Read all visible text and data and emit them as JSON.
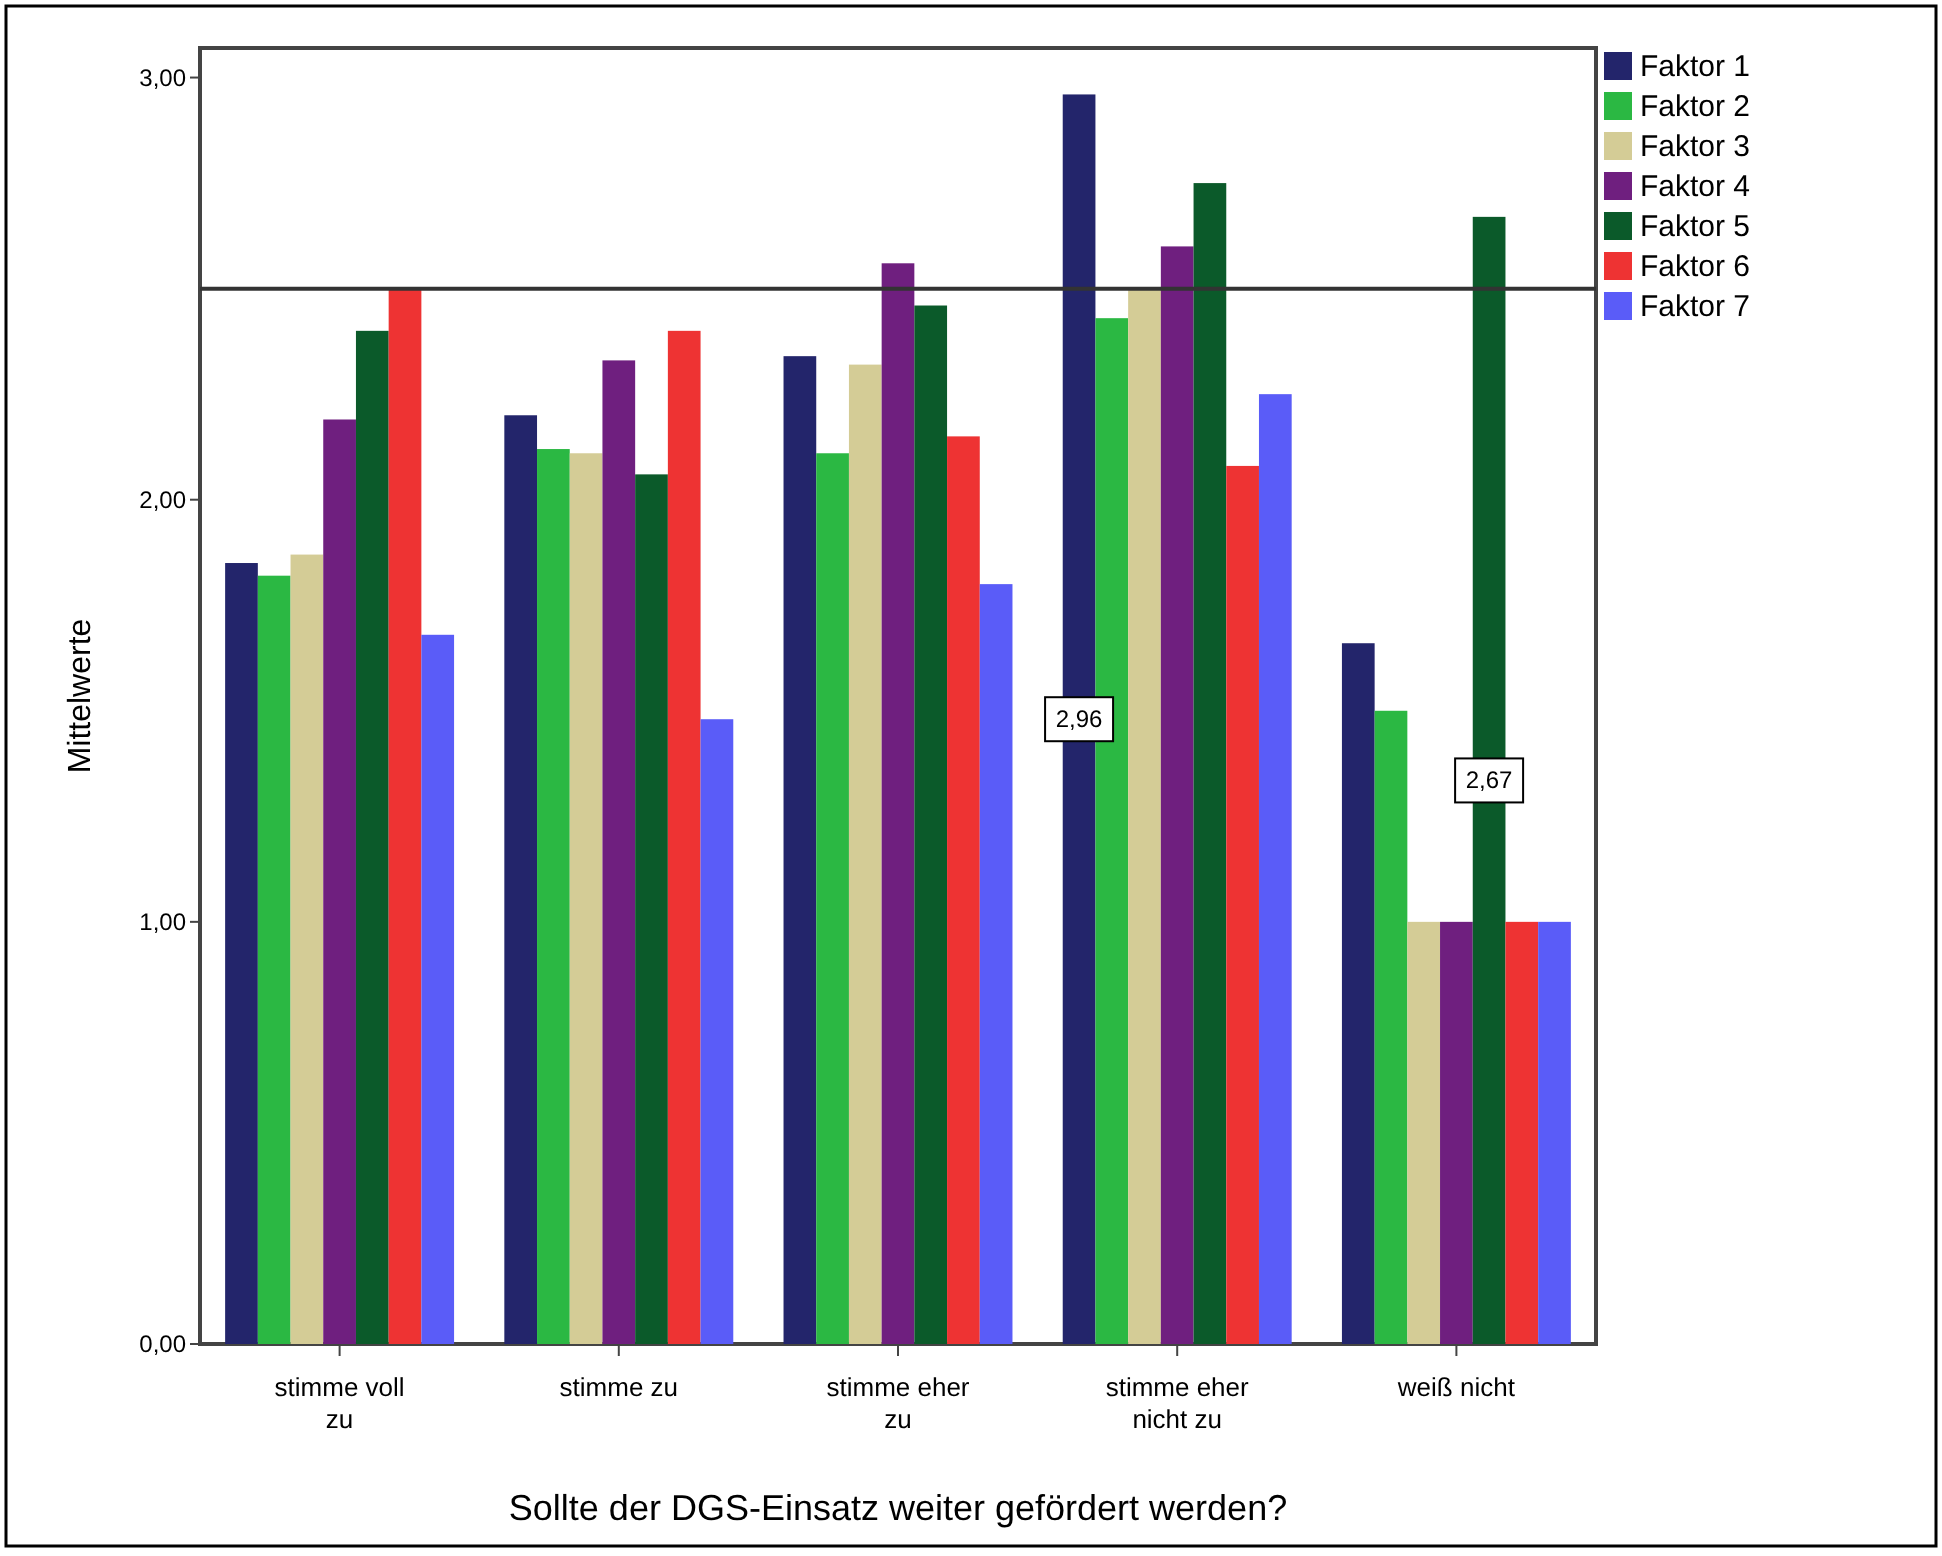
{
  "chart_data": {
    "type": "bar",
    "xlabel": "Sollte der DGS-Einsatz weiter gefördert werden?",
    "ylabel": "Mittelwerte",
    "categories": [
      "stimme voll zu",
      "stimme zu",
      "stimme eher zu",
      "stimme eher nicht zu",
      "weiß nicht"
    ],
    "series": [
      {
        "name": "Faktor 1",
        "color": "#23256b",
        "values": [
          1.85,
          2.2,
          2.34,
          2.96,
          1.66
        ],
        "value_labels": [
          null,
          null,
          null,
          "2,96",
          null
        ]
      },
      {
        "name": "Faktor 2",
        "color": "#2bb843",
        "values": [
          1.82,
          2.12,
          2.11,
          2.43,
          1.5
        ]
      },
      {
        "name": "Faktor 3",
        "color": "#d4cc96",
        "values": [
          1.87,
          2.11,
          2.32,
          2.5,
          1.0
        ]
      },
      {
        "name": "Faktor 4",
        "color": "#6f1f7f",
        "values": [
          2.19,
          2.33,
          2.56,
          2.6,
          1.0
        ]
      },
      {
        "name": "Faktor 5",
        "color": "#0b5a2a",
        "values": [
          2.4,
          2.06,
          2.46,
          2.75,
          2.67
        ],
        "value_labels": [
          null,
          null,
          null,
          null,
          "2,67"
        ]
      },
      {
        "name": "Faktor 6",
        "color": "#ee3333",
        "values": [
          2.5,
          2.4,
          2.15,
          2.08,
          1.0
        ]
      },
      {
        "name": "Faktor 7",
        "color": "#5a5cf8",
        "values": [
          1.68,
          1.48,
          1.8,
          2.25,
          1.0
        ]
      }
    ],
    "ylim": [
      0,
      3.07
    ],
    "yticks": [
      {
        "value": 0,
        "label": "0,00"
      },
      {
        "value": 1,
        "label": "1,00"
      },
      {
        "value": 2,
        "label": "2,00"
      },
      {
        "value": 3,
        "label": "3,00"
      }
    ],
    "ref_lines": [
      {
        "axis": "y",
        "value": 2.5,
        "color": "#333333"
      }
    ],
    "legend": "top right",
    "grid": false
  }
}
